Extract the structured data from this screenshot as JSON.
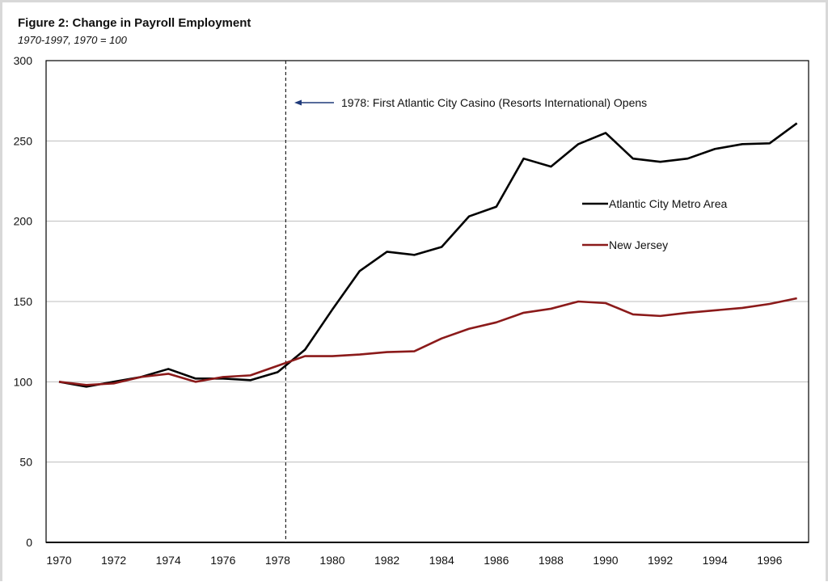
{
  "chart_data": {
    "type": "line",
    "title": "Figure 2: Change in Payroll Employment",
    "subtitle": "1970-1997,  1970 = 100",
    "xlabel": "",
    "ylabel": "",
    "x": [
      1970,
      1971,
      1972,
      1973,
      1974,
      1975,
      1976,
      1977,
      1978,
      1979,
      1980,
      1981,
      1982,
      1983,
      1984,
      1985,
      1986,
      1987,
      1988,
      1989,
      1990,
      1991,
      1992,
      1993,
      1994,
      1995,
      1996,
      1997
    ],
    "xticks": [
      "1970",
      "1972",
      "1974",
      "1976",
      "1978",
      "1980",
      "1982",
      "1984",
      "1986",
      "1988",
      "1990",
      "1992",
      "1994",
      "1996"
    ],
    "ylim": [
      0,
      300
    ],
    "yticks": [
      "0",
      "50",
      "100",
      "150",
      "200",
      "250",
      "300"
    ],
    "grid": "horizontal",
    "legend_position": "right, inside plot",
    "series": [
      {
        "name": "Atlantic City Metro Area",
        "color": "#000000",
        "values": [
          100,
          97,
          100,
          103,
          108,
          102,
          102,
          101,
          106,
          120,
          145,
          169,
          181,
          179,
          184,
          203,
          209,
          239,
          234,
          248,
          255,
          239,
          237,
          239,
          245,
          248,
          248.5,
          261
        ]
      },
      {
        "name": "New Jersey",
        "color": "#8b1a1a",
        "values": [
          100,
          98,
          99,
          103,
          105,
          100,
          103,
          104,
          110,
          116,
          116,
          117,
          118.5,
          119,
          127,
          133,
          137,
          143,
          145.5,
          150,
          149,
          142,
          141,
          143,
          144.5,
          146,
          148.5,
          152
        ]
      }
    ],
    "annotation": {
      "x": 1978,
      "text": "1978:  First Atlantic City Casino (Resorts International) Opens",
      "arrow_color": "#1f3a7a"
    }
  }
}
